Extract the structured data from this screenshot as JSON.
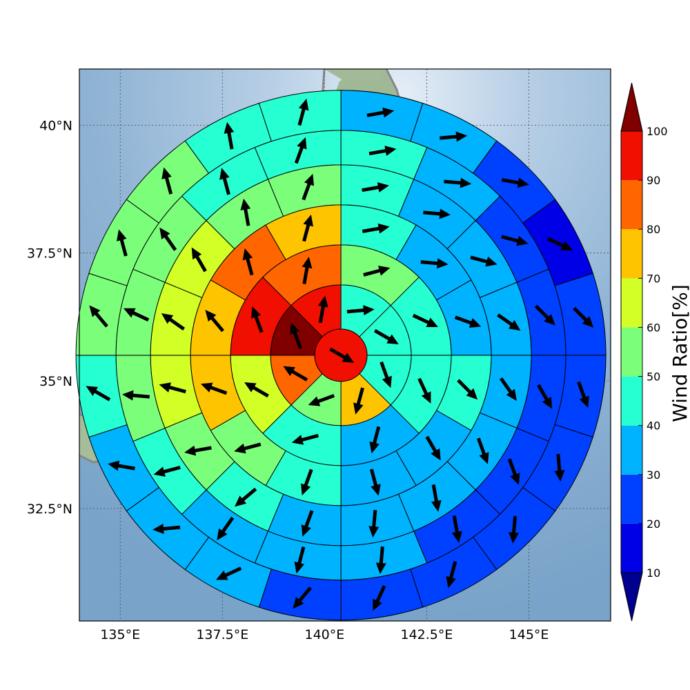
{
  "chart_data": {
    "type": "heatmap",
    "projection": "polar sector grid centered on a point over central Japan, drawn on a shaded-relief map with grey coastlines",
    "x_axis": {
      "range": [
        134.0,
        147.0
      ],
      "ticks": [
        135.0,
        137.5,
        140.0,
        142.5,
        145.0
      ],
      "tick_labels": [
        "135°E",
        "137.5°E",
        "140°E",
        "142.5°E",
        "145°E"
      ]
    },
    "y_axis": {
      "range": [
        30.3,
        41.1
      ],
      "ticks": [
        32.5,
        35.0,
        37.5,
        40.0
      ],
      "tick_labels": [
        "32.5°N",
        "35°N",
        "37.5°N",
        "40°N"
      ]
    },
    "grid": true,
    "center": {
      "lon": 140.4,
      "lat": 35.5
    },
    "rings": [
      {
        "sectors": 1,
        "values": [
          98
        ]
      },
      {
        "sectors": 8,
        "values": [
          42,
          45,
          48,
          72,
          55,
          85,
          105,
          95
        ]
      },
      {
        "sectors": 8,
        "values": [
          52,
          40,
          45,
          35,
          45,
          65,
          95,
          85
        ]
      },
      {
        "sectors": 12,
        "values": [
          48,
          37,
          35,
          47,
          35,
          35,
          42,
          55,
          75,
          78,
          82,
          75
        ]
      },
      {
        "sectors": 16,
        "values": [
          48,
          37,
          32,
          32,
          35,
          32,
          35,
          32,
          37,
          45,
          57,
          62,
          65,
          62,
          57,
          55
        ]
      },
      {
        "sectors": 16,
        "values": [
          48,
          32,
          22,
          22,
          28,
          27,
          27,
          34,
          34,
          34,
          45,
          52,
          55,
          58,
          48,
          48
        ]
      },
      {
        "sectors": 20,
        "values": [
          32,
          32,
          26,
          15,
          26,
          26,
          24,
          27,
          26,
          24,
          23,
          34,
          34,
          34,
          45,
          53,
          51,
          55,
          49,
          48
        ]
      }
    ],
    "wind_arrows": [
      {
        "ring": 0,
        "directions_deg": [
          120
        ]
      },
      {
        "ring": 1,
        "directions_deg": [
          85,
          120,
          160,
          195,
          250,
          300,
          340,
          10
        ]
      },
      {
        "ring": 2,
        "directions_deg": [
          75,
          115,
          155,
          195,
          255,
          300,
          340,
          10
        ]
      },
      {
        "ring": 3,
        "directions_deg": [
          80,
          95,
          110,
          135,
          150,
          165,
          200,
          255,
          290,
          320,
          345,
          15
        ]
      },
      {
        "ring": 4,
        "directions_deg": [
          80,
          95,
          105,
          125,
          145,
          160,
          170,
          185,
          200,
          230,
          260,
          285,
          305,
          330,
          350,
          20
        ]
      },
      {
        "ring": 5,
        "directions_deg": [
          80,
          95,
          105,
          135,
          150,
          160,
          170,
          185,
          195,
          215,
          255,
          275,
          295,
          325,
          345,
          20
        ]
      },
      {
        "ring": 6,
        "directions_deg": [
          80,
          85,
          100,
          115,
          135,
          160,
          175,
          185,
          195,
          205,
          220,
          245,
          265,
          280,
          300,
          320,
          345,
          345,
          350,
          15
        ]
      }
    ],
    "colorbar": {
      "label": "Wind Ratio[%]",
      "ticks": [
        10,
        20,
        30,
        40,
        50,
        60,
        70,
        80,
        90,
        100
      ],
      "tick_labels": [
        "10",
        "20",
        "30",
        "40",
        "50",
        "60",
        "70",
        "80",
        "90",
        "100"
      ],
      "boundaries": [
        0,
        10,
        20,
        30,
        40,
        50,
        60,
        70,
        80,
        90,
        100,
        110
      ],
      "colors": [
        "#00008f",
        "#0000e6",
        "#0040ff",
        "#00b3ff",
        "#26ffd1",
        "#7bff7b",
        "#d1ff26",
        "#ffc400",
        "#ff6600",
        "#f00f00",
        "#800000"
      ],
      "extend": "both"
    }
  }
}
